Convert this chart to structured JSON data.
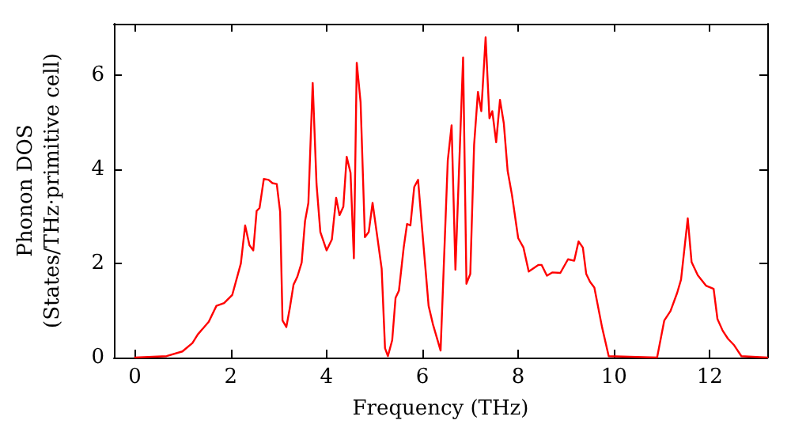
{
  "chart_data": {
    "type": "line",
    "xlabel": "Frequency (THz)",
    "ylabel": "Phonon DOS\n(States/THz·primitive cell)",
    "xlim": [
      -0.44,
      13.2
    ],
    "ylim": [
      0,
      7.1
    ],
    "xticks": [
      0,
      2,
      4,
      6,
      8,
      10,
      12
    ],
    "yticks": [
      0,
      2,
      4,
      6
    ],
    "marker": "none",
    "line_style": "solid",
    "series": [
      {
        "color": "#ff0000",
        "x": [
          0,
          0.66,
          0.99,
          1.2,
          1.31,
          1.54,
          1.7,
          1.86,
          2.03,
          2.21,
          2.3,
          2.39,
          2.47,
          2.54,
          2.6,
          2.69,
          2.79,
          2.87,
          2.96,
          3.03,
          3.08,
          3.16,
          3.23,
          3.31,
          3.39,
          3.48,
          3.55,
          3.62,
          3.71,
          3.79,
          3.87,
          4.0,
          4.11,
          4.2,
          4.27,
          4.35,
          4.42,
          4.5,
          4.57,
          4.63,
          4.71,
          4.8,
          4.88,
          4.96,
          5.06,
          5.15,
          5.22,
          5.28,
          5.37,
          5.44,
          5.51,
          5.61,
          5.68,
          5.75,
          5.83,
          5.91,
          5.99,
          6.13,
          6.22,
          6.38,
          6.53,
          6.61,
          6.69,
          6.85,
          6.92,
          7.0,
          7.08,
          7.16,
          7.23,
          7.32,
          7.4,
          7.46,
          7.54,
          7.62,
          7.7,
          7.78,
          7.87,
          8.0,
          8.11,
          8.22,
          8.42,
          8.49,
          8.6,
          8.71,
          8.88,
          9.04,
          9.17,
          9.26,
          9.35,
          9.42,
          9.5,
          9.59,
          9.75,
          9.89,
          10.9,
          11.05,
          11.18,
          11.32,
          11.4,
          11.54,
          11.62,
          11.75,
          11.92,
          12.08,
          12.16,
          12.27,
          12.38,
          12.51,
          12.66,
          13.2
        ],
        "values": [
          0,
          0.03,
          0.13,
          0.31,
          0.49,
          0.76,
          1.1,
          1.16,
          1.33,
          2.0,
          2.81,
          2.39,
          2.28,
          3.12,
          3.18,
          3.8,
          3.78,
          3.71,
          3.69,
          3.1,
          0.79,
          0.65,
          1.04,
          1.55,
          1.72,
          2.02,
          2.9,
          3.29,
          5.84,
          3.69,
          2.67,
          2.28,
          2.51,
          3.4,
          3.03,
          3.21,
          4.27,
          3.93,
          2.11,
          6.27,
          5.43,
          2.56,
          2.67,
          3.29,
          2.56,
          1.89,
          0.2,
          0.03,
          0.37,
          1.27,
          1.42,
          2.34,
          2.84,
          2.81,
          3.63,
          3.78,
          2.79,
          1.1,
          0.71,
          0.15,
          4.19,
          4.94,
          1.87,
          6.38,
          1.57,
          1.78,
          4.53,
          5.65,
          5.24,
          6.81,
          5.09,
          5.24,
          4.58,
          5.48,
          4.98,
          3.97,
          3.46,
          2.54,
          2.34,
          1.83,
          1.97,
          1.97,
          1.74,
          1.81,
          1.8,
          2.09,
          2.06,
          2.47,
          2.34,
          1.78,
          1.61,
          1.49,
          0.65,
          0.03,
          0,
          0.79,
          0.99,
          1.38,
          1.66,
          2.96,
          2.03,
          1.75,
          1.53,
          1.46,
          0.82,
          0.57,
          0.4,
          0.26,
          0.03,
          0
        ]
      }
    ]
  }
}
